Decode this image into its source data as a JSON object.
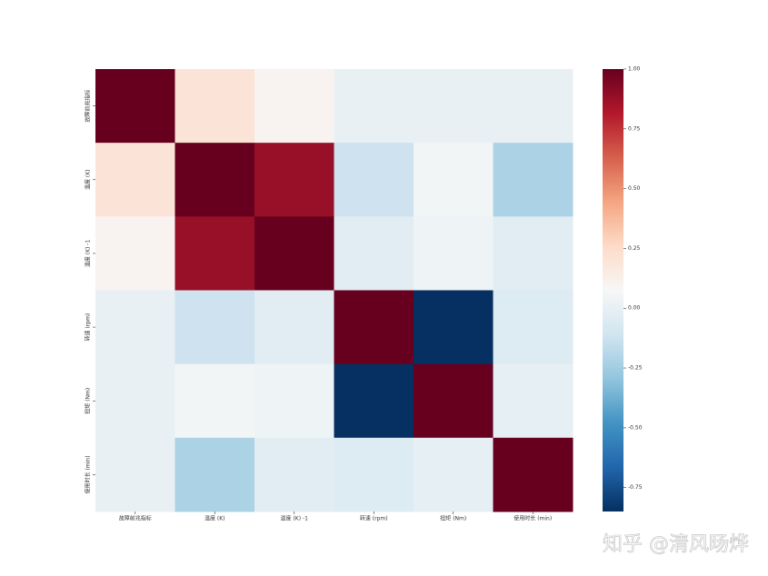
{
  "chart_data": {
    "type": "heatmap",
    "x_labels": [
      "故障前兆指标",
      "温度 (K)",
      "温度 (K) -1",
      "转速 (rpm)",
      "扭矩 (Nm)",
      "使用时长 (min)"
    ],
    "y_labels": [
      "故障前兆指标",
      "温度 (K)",
      "温度 (K) -1",
      "转速 (rpm)",
      "扭矩 (Nm)",
      "使用时长 (min)"
    ],
    "values": [
      [
        1,
        0.2,
        0.1,
        0.0,
        0.0,
        0.0
      ],
      [
        0.2,
        1,
        0.88,
        -0.12,
        0.05,
        -0.22
      ],
      [
        0.1,
        0.88,
        1,
        -0.03,
        0.03,
        -0.03
      ],
      [
        0.0,
        -0.12,
        -0.03,
        1,
        -0.85,
        -0.05
      ],
      [
        0.0,
        0.05,
        0.03,
        -0.85,
        1,
        -0.01
      ],
      [
        0.0,
        -0.22,
        -0.03,
        -0.05,
        -0.01,
        1
      ]
    ],
    "colormap": "RdBu_r",
    "vlim": [
      -0.85,
      1
    ],
    "cbar_ticks": [
      {
        "value": 1,
        "label": "1.00"
      },
      {
        "value": 0.75,
        "label": "0.75"
      },
      {
        "value": 0.5,
        "label": "0.50"
      },
      {
        "value": 0.25,
        "label": "0.25"
      },
      {
        "value": 0,
        "label": "0.00"
      },
      {
        "value": -0.25,
        "label": "-0.25"
      },
      {
        "value": -0.5,
        "label": "-0.50"
      },
      {
        "value": -0.75,
        "label": "-0.75"
      }
    ]
  },
  "watermark": "知乎 @清风旸烨"
}
